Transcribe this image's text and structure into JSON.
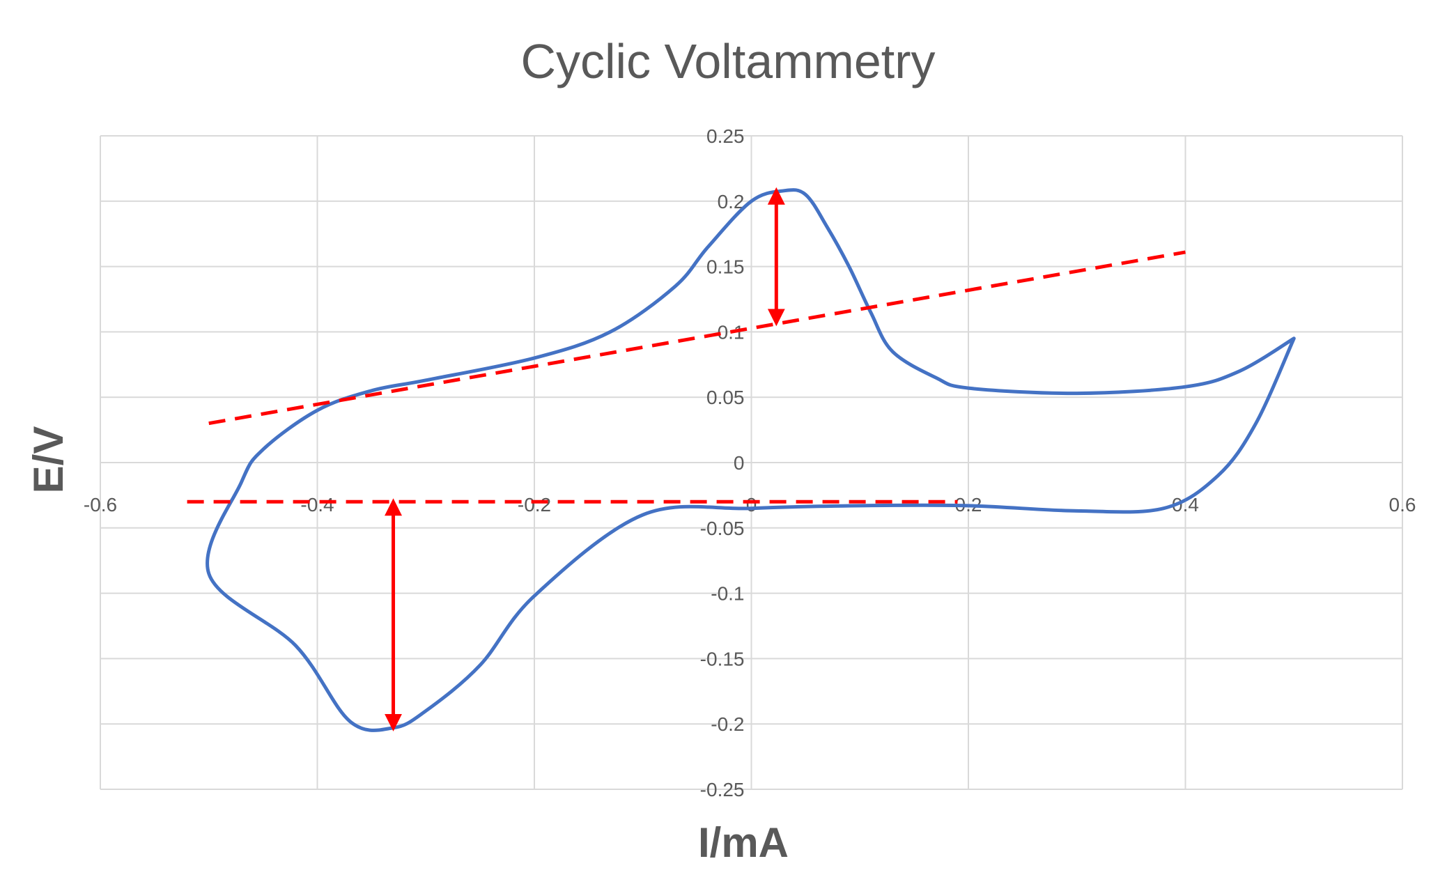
{
  "chart_data": {
    "type": "scatter",
    "title": "Cyclic Voltammetry",
    "xlabel": "I/mA",
    "ylabel": "E/V",
    "xlim": [
      -0.6,
      0.6
    ],
    "ylim": [
      -0.25,
      0.25
    ],
    "xticks": [
      -0.6,
      -0.4,
      -0.2,
      0,
      0.2,
      0.4,
      0.6
    ],
    "xtick_labels": [
      "-0.6",
      "-0.4",
      "-0.2",
      "0",
      "0.2",
      "0.4",
      "0.6"
    ],
    "yticks": [
      -0.25,
      -0.2,
      -0.15,
      -0.1,
      -0.05,
      0,
      0.05,
      0.1,
      0.15,
      0.2,
      0.25
    ],
    "ytick_labels": [
      "-0.25",
      "-0.2",
      "-0.15",
      "-0.1",
      "-0.05",
      "0",
      "0.05",
      "0.1",
      "0.15",
      "0.2",
      "0.25"
    ],
    "grid": true,
    "legend": "none",
    "series": [
      {
        "color": "#4472c4",
        "style": "solid-smooth",
        "x": [
          0.5,
          0.465,
          0.43,
          0.38,
          0.3,
          0.2,
          0.1,
          0.0,
          -0.1,
          -0.2,
          -0.25,
          -0.3,
          -0.33,
          -0.37,
          -0.42,
          -0.5,
          -0.47,
          -0.45,
          -0.4,
          -0.35,
          -0.3,
          -0.2,
          -0.13,
          -0.07,
          -0.04,
          0.0,
          0.03,
          0.05,
          0.07,
          0.09,
          0.11,
          0.13,
          0.17,
          0.2,
          0.3,
          0.4,
          0.45,
          0.5
        ],
        "y": [
          0.095,
          0.03,
          -0.01,
          -0.035,
          -0.037,
          -0.033,
          -0.033,
          -0.035,
          -0.04,
          -0.102,
          -0.155,
          -0.19,
          -0.203,
          -0.198,
          -0.14,
          -0.085,
          -0.015,
          0.01,
          0.04,
          0.055,
          0.063,
          0.08,
          0.1,
          0.135,
          0.165,
          0.2,
          0.208,
          0.205,
          0.18,
          0.15,
          0.115,
          0.085,
          0.065,
          0.057,
          0.053,
          0.058,
          0.07,
          0.095
        ]
      },
      {
        "color": "#ff0000",
        "style": "dashed",
        "x": [
          -0.5,
          0.4
        ],
        "y": [
          0.03,
          0.161
        ]
      },
      {
        "color": "#ff0000",
        "style": "dashed",
        "x": [
          -0.52,
          0.19
        ],
        "y": [
          -0.03,
          -0.03
        ]
      }
    ],
    "annotations": [
      {
        "type": "double-arrow",
        "color": "#ff0000",
        "x": 0.023,
        "y_from": 0.107,
        "y_to": 0.208
      },
      {
        "type": "double-arrow",
        "color": "#ff0000",
        "x": -0.33,
        "y_from": -0.03,
        "y_to": -0.203
      }
    ]
  }
}
